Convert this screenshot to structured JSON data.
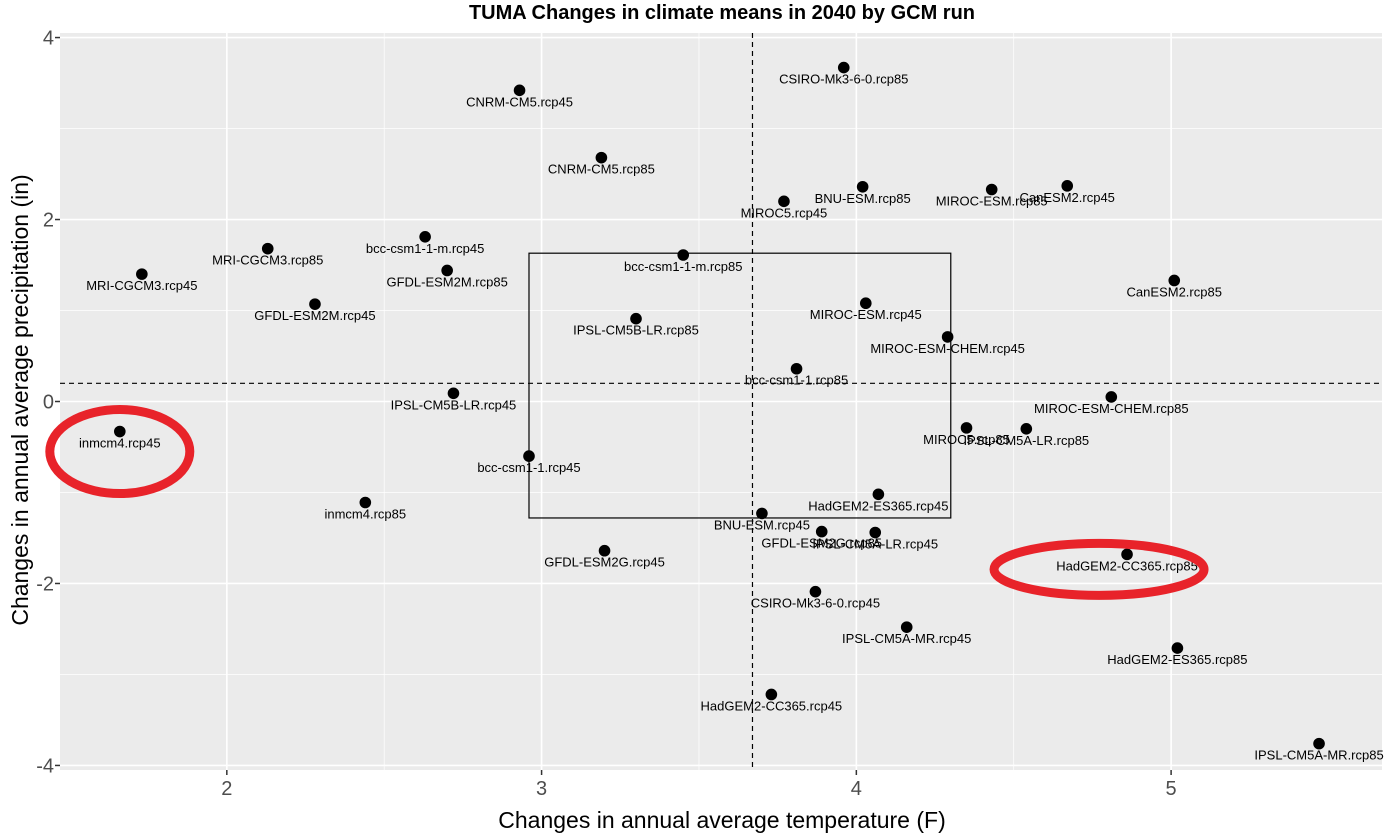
{
  "chart_data": {
    "type": "scatter",
    "title": "TUMA Changes in climate means in 2040 by GCM run",
    "xlabel": "Changes in annual average temperature (F)",
    "ylabel": "Changes in annual average precipitation (in)",
    "xlim": [
      1.47,
      5.67
    ],
    "ylim": [
      -4.05,
      4.05
    ],
    "xticks": [
      2,
      3,
      4,
      5
    ],
    "yticks": [
      -4,
      -2,
      0,
      2,
      4
    ],
    "grid": true,
    "background": "#ebebeb",
    "gridline_color": "#ffffff",
    "point_color": "#000000",
    "highlight_color": "#e8232a",
    "reference_lines": {
      "x": 3.67,
      "y": 0.2
    },
    "box": {
      "x": [
        2.96,
        4.3
      ],
      "y": [
        -1.28,
        1.63
      ]
    },
    "highlighted": [
      "inmcm4.rcp45",
      "HadGEM2-CC365.rcp85"
    ],
    "points": [
      {
        "label": "CSIRO-Mk3-6-0.rcp85",
        "x": 3.96,
        "y": 3.67
      },
      {
        "label": "CNRM-CM5.rcp45",
        "x": 2.93,
        "y": 3.42
      },
      {
        "label": "CNRM-CM5.rcp85",
        "x": 3.19,
        "y": 2.68
      },
      {
        "label": "BNU-ESM.rcp85",
        "x": 4.02,
        "y": 2.36
      },
      {
        "label": "MIROC-ESM.rcp85",
        "x": 4.43,
        "y": 2.33
      },
      {
        "label": "CanESM2.rcp45",
        "x": 4.67,
        "y": 2.37
      },
      {
        "label": "MIROC5.rcp45",
        "x": 3.77,
        "y": 2.2
      },
      {
        "label": "MRI-CGCM3.rcp85",
        "x": 2.13,
        "y": 1.68
      },
      {
        "label": "bcc-csm1-1-m.rcp45",
        "x": 2.63,
        "y": 1.81
      },
      {
        "label": "bcc-csm1-1-m.rcp85",
        "x": 3.45,
        "y": 1.61
      },
      {
        "label": "MRI-CGCM3.rcp45",
        "x": 1.73,
        "y": 1.4
      },
      {
        "label": "GFDL-ESM2M.rcp85",
        "x": 2.7,
        "y": 1.44
      },
      {
        "label": "CanESM2.rcp85",
        "x": 5.01,
        "y": 1.33
      },
      {
        "label": "GFDL-ESM2M.rcp45",
        "x": 2.28,
        "y": 1.07
      },
      {
        "label": "MIROC-ESM.rcp45",
        "x": 4.03,
        "y": 1.08
      },
      {
        "label": "IPSL-CM5B-LR.rcp85",
        "x": 3.3,
        "y": 0.91
      },
      {
        "label": "MIROC-ESM-CHEM.rcp45",
        "x": 4.29,
        "y": 0.71
      },
      {
        "label": "bcc-csm1-1.rcp85",
        "x": 3.81,
        "y": 0.36
      },
      {
        "label": "IPSL-CM5B-LR.rcp45",
        "x": 2.72,
        "y": 0.09
      },
      {
        "label": "MIROC-ESM-CHEM.rcp85",
        "x": 4.81,
        "y": 0.05
      },
      {
        "label": "MIROC5.rcp85",
        "x": 4.35,
        "y": -0.29
      },
      {
        "label": "IPSL-CM5A-LR.rcp85",
        "x": 4.54,
        "y": -0.3
      },
      {
        "label": "inmcm4.rcp45",
        "x": 1.66,
        "y": -0.33
      },
      {
        "label": "bcc-csm1-1.rcp45",
        "x": 2.96,
        "y": -0.6
      },
      {
        "label": "HadGEM2-ES365.rcp45",
        "x": 4.07,
        "y": -1.02
      },
      {
        "label": "inmcm4.rcp85",
        "x": 2.44,
        "y": -1.11
      },
      {
        "label": "BNU-ESM.rcp45",
        "x": 3.7,
        "y": -1.23
      },
      {
        "label": "GFDL-ESM2G.rcp85",
        "x": 3.89,
        "y": -1.43
      },
      {
        "label": "IPSL-CM5A-LR.rcp45",
        "x": 4.06,
        "y": -1.44
      },
      {
        "label": "GFDL-ESM2G.rcp45",
        "x": 3.2,
        "y": -1.64
      },
      {
        "label": "HadGEM2-CC365.rcp85",
        "x": 4.86,
        "y": -1.68
      },
      {
        "label": "CSIRO-Mk3-6-0.rcp45",
        "x": 3.87,
        "y": -2.09
      },
      {
        "label": "IPSL-CM5A-MR.rcp45",
        "x": 4.16,
        "y": -2.48
      },
      {
        "label": "HadGEM2-ES365.rcp85",
        "x": 5.02,
        "y": -2.71
      },
      {
        "label": "HadGEM2-CC365.rcp45",
        "x": 3.73,
        "y": -3.22
      },
      {
        "label": "IPSL-CM5A-MR.rcp85",
        "x": 5.47,
        "y": -3.76
      }
    ]
  }
}
